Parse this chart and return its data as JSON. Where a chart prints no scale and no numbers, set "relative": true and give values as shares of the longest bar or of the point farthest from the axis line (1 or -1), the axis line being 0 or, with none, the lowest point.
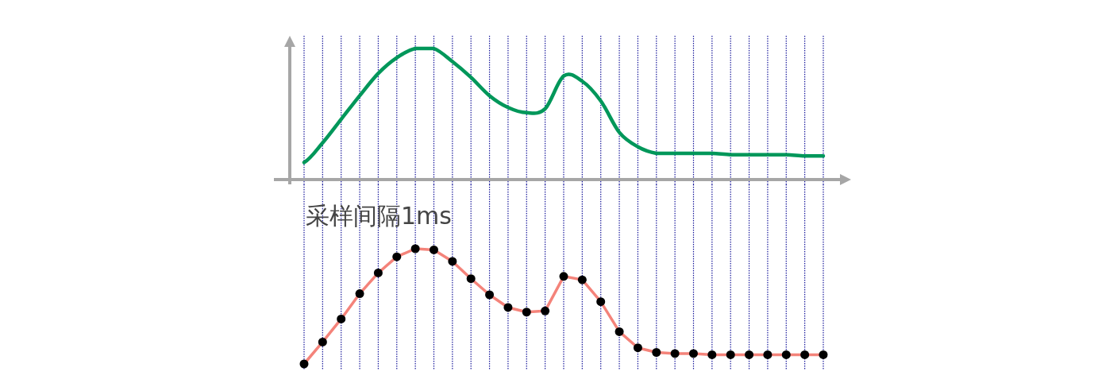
{
  "chart_data": [
    {
      "type": "line",
      "relative": true,
      "grid": "x",
      "marker": "none",
      "line_style": "solid",
      "categories": [
        null,
        null,
        null,
        null,
        null,
        null,
        null,
        null,
        null,
        null,
        null,
        null,
        null,
        null,
        null,
        null,
        null,
        null,
        null,
        null,
        null,
        null,
        null,
        null,
        null,
        null,
        null,
        null,
        null
      ],
      "series": [
        {
          "color": "#00975a",
          "values": [
            0.13,
            0.28,
            0.46,
            0.64,
            0.81,
            0.93,
            1,
            1,
            0.9,
            0.78,
            0.64,
            0.55,
            0.51,
            0.54,
            0.79,
            0.75,
            0.6,
            0.36,
            0.25,
            0.2,
            0.2,
            0.2,
            0.2,
            0.19,
            0.19,
            0.19,
            0.19,
            0.18,
            0.18
          ]
        }
      ]
    },
    {
      "type": "line",
      "relative": true,
      "grid": "x",
      "marker": "circle",
      "line_style": "solid",
      "title": "采样间隔1ms",
      "categories": [
        null,
        null,
        null,
        null,
        null,
        null,
        null,
        null,
        null,
        null,
        null,
        null,
        null,
        null,
        null,
        null,
        null,
        null,
        null,
        null,
        null,
        null,
        null,
        null,
        null,
        null,
        null,
        null,
        null
      ],
      "series": [
        {
          "color": "#f4837a",
          "values": [
            0,
            0.19,
            0.39,
            0.61,
            0.79,
            0.93,
            1,
            0.99,
            0.89,
            0.74,
            0.6,
            0.49,
            0.45,
            0.46,
            0.76,
            0.73,
            0.54,
            0.28,
            0.14,
            0.1,
            0.09,
            0.09,
            0.08,
            0.08,
            0.08,
            0.08,
            0.08,
            0.08,
            0.08
          ]
        }
      ]
    }
  ]
}
